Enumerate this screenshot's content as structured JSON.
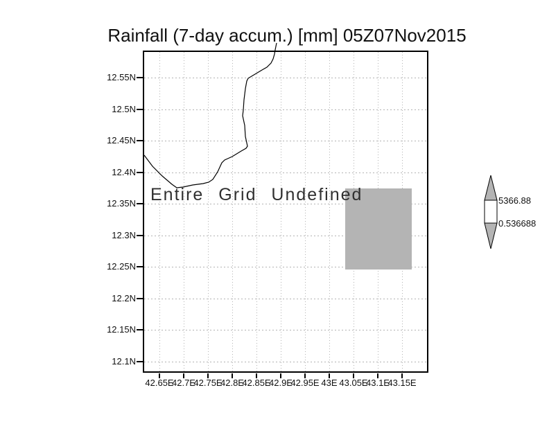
{
  "title": "Rainfall (7-day accum.) [mm] 05Z07Nov2015",
  "map": {
    "undefined_label": "Entire Grid Undefined",
    "y_ticks": [
      "12.55N",
      "12.5N",
      "12.45N",
      "12.4N",
      "12.35N",
      "12.3N",
      "12.25N",
      "12.2N",
      "12.15N",
      "12.1N"
    ],
    "x_ticks": [
      "42.65E",
      "42.7E",
      "42.75E",
      "42.8E",
      "42.85E",
      "42.9E",
      "42.95E",
      "43E",
      "43.05E",
      "43.1E",
      "43.15E"
    ],
    "coastline_points": [
      [
        0,
        149
      ],
      [
        12,
        165
      ],
      [
        26,
        179
      ],
      [
        40,
        191
      ],
      [
        47,
        196
      ],
      [
        56,
        195
      ],
      [
        70,
        192
      ],
      [
        85,
        190
      ],
      [
        93,
        188
      ],
      [
        99,
        184
      ],
      [
        106,
        173
      ],
      [
        112,
        160
      ],
      [
        116,
        156
      ],
      [
        127,
        151
      ],
      [
        140,
        143
      ],
      [
        147,
        139
      ],
      [
        149,
        136
      ],
      [
        146,
        122
      ],
      [
        145,
        106
      ],
      [
        142,
        92
      ],
      [
        143,
        84
      ],
      [
        144,
        69
      ],
      [
        146,
        53
      ],
      [
        148,
        42
      ],
      [
        150,
        38
      ],
      [
        160,
        32
      ],
      [
        170,
        26
      ],
      [
        177,
        22
      ],
      [
        183,
        16
      ],
      [
        186,
        10
      ],
      [
        188,
        3
      ],
      [
        189,
        -3
      ],
      [
        190,
        -8
      ],
      [
        191,
        -13
      ]
    ]
  },
  "colorbar": {
    "max_label": "5366.88",
    "min_label": "0.536688"
  },
  "colors": {
    "shade_gray": "#b4b4b4",
    "grid_gray": "#b2b2b2",
    "line_black": "#000000"
  },
  "chart_data": {
    "type": "heatmap",
    "title": "Rainfall (7-day accum.) [mm] 05Z07Nov2015",
    "xlabel": "",
    "ylabel": "",
    "x_tick_labels": [
      "42.65E",
      "42.7E",
      "42.75E",
      "42.8E",
      "42.85E",
      "42.9E",
      "42.95E",
      "43E",
      "43.05E",
      "43.1E",
      "43.15E"
    ],
    "y_tick_labels": [
      "12.55N",
      "12.5N",
      "12.45N",
      "12.4N",
      "12.35N",
      "12.3N",
      "12.25N",
      "12.2N",
      "12.15N",
      "12.1N"
    ],
    "xlim_est": [
      42.62,
      43.21
    ],
    "ylim_est": [
      12.08,
      12.59
    ],
    "grid": true,
    "annotation": "Entire Grid Undefined",
    "values": "entire grid undefined - no rainfall values plotted; one gray missing-data rectangle drawn",
    "undefined_region_est": {
      "lon": [
        43.03,
        43.17
      ],
      "lat": [
        12.245,
        12.375
      ]
    },
    "colorbar": {
      "position": "right",
      "min": 0.536688,
      "max": 5366.88,
      "labels": [
        "5366.88",
        "0.536688"
      ]
    }
  }
}
